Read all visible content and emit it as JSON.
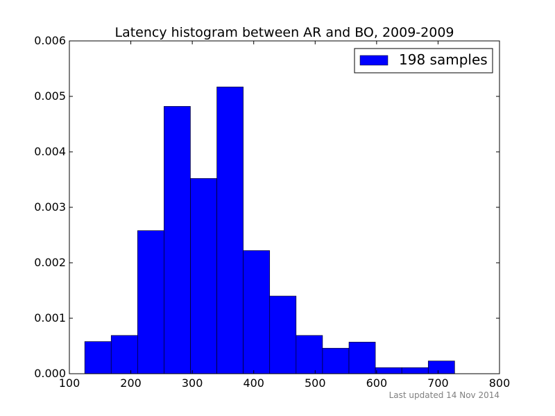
{
  "chart_data": {
    "type": "bar",
    "title": "Latency histogram between AR and BO, 2009-2009",
    "xlabel": "",
    "ylabel": "",
    "xlim": [
      100,
      800
    ],
    "ylim": [
      0,
      0.006
    ],
    "x_ticks": [
      "100",
      "200",
      "300",
      "400",
      "500",
      "600",
      "700",
      "800"
    ],
    "y_ticks": [
      "0.000",
      "0.001",
      "0.002",
      "0.003",
      "0.004",
      "0.005",
      "0.006"
    ],
    "bin_edges": [
      125,
      168,
      211,
      254,
      297,
      340,
      383,
      426,
      469,
      512,
      555,
      598,
      641,
      684,
      727
    ],
    "values": [
      0.00058,
      0.00069,
      0.00258,
      0.00482,
      0.00352,
      0.00517,
      0.00222,
      0.0014,
      0.00069,
      0.00046,
      0.00057,
      0.00011,
      0.00011,
      0.00023
    ],
    "series": [
      {
        "name": "198 samples",
        "color": "#0000ff"
      }
    ],
    "legend_position": "top-right",
    "grid": false
  },
  "footer": {
    "text": "Last updated 14 Nov 2014"
  }
}
